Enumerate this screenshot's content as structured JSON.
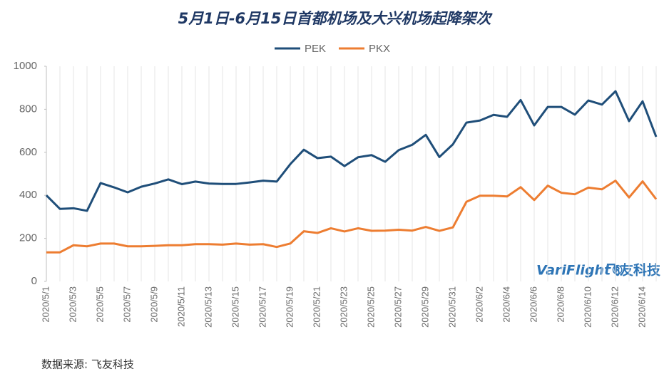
{
  "chart_data": {
    "type": "line",
    "title": "5月1日-6月15日首都机场及大兴机场起降架次",
    "categories": [
      "2020/5/1",
      null,
      "2020/5/3",
      null,
      "2020/5/5",
      null,
      "2020/5/7",
      null,
      "2020/5/9",
      null,
      "2020/5/11",
      null,
      "2020/5/13",
      null,
      "2020/5/15",
      null,
      "2020/5/17",
      null,
      "2020/5/19",
      null,
      "2020/5/21",
      null,
      "2020/5/23",
      null,
      "2020/5/25",
      null,
      "2020/5/27",
      null,
      "2020/5/29",
      null,
      "2020/5/31",
      null,
      "2020/6/2",
      null,
      "2020/6/4",
      null,
      "2020/6/6",
      null,
      "2020/6/8",
      null,
      "2020/6/10",
      null,
      "2020/6/12",
      null,
      "2020/6/14",
      null
    ],
    "series": [
      {
        "name": "PEK",
        "color": "#1f4e79",
        "values": [
          400,
          337,
          340,
          328,
          457,
          437,
          414,
          440,
          455,
          474,
          452,
          464,
          455,
          453,
          453,
          460,
          468,
          464,
          545,
          612,
          573,
          580,
          536,
          577,
          587,
          556,
          610,
          635,
          681,
          578,
          637,
          738,
          748,
          774,
          765,
          843,
          725,
          811,
          811,
          775,
          841,
          822,
          884,
          745,
          837,
          672
        ]
      },
      {
        "name": "PKX",
        "color": "#ed7d31",
        "values": [
          135,
          135,
          168,
          163,
          176,
          176,
          163,
          163,
          165,
          168,
          168,
          173,
          173,
          171,
          176,
          171,
          173,
          160,
          176,
          233,
          225,
          247,
          232,
          247,
          235,
          236,
          240,
          236,
          253,
          235,
          251,
          370,
          398,
          398,
          395,
          438,
          378,
          445,
          412,
          405,
          436,
          428,
          468,
          390,
          465,
          382
        ]
      }
    ],
    "ylim": [
      0,
      1000
    ],
    "yticks": [
      0,
      200,
      400,
      600,
      800,
      1000
    ],
    "legend": "top",
    "watermark": {
      "brand": "VariFlight®",
      "name": "飞友科技"
    },
    "source": "数据来源: 飞友科技"
  }
}
